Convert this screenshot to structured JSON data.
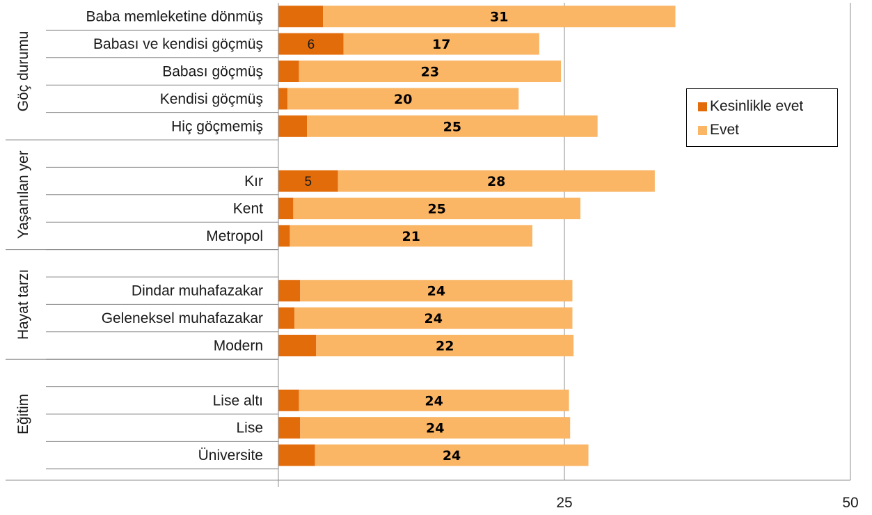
{
  "colors": {
    "kesinlikle": "#e36c0a",
    "evet": "#fab565",
    "axis": "#8c8c8c",
    "grid": "#8c8c8c"
  },
  "chart_data": {
    "type": "bar",
    "orientation": "horizontal",
    "stacked": true,
    "xlim": [
      0,
      50
    ],
    "x_ticks": [
      "25",
      "50"
    ],
    "grid": true,
    "legend_position": "right",
    "groups": [
      {
        "name": "Göç durumu",
        "categories": [
          "Baba memleketine dönmüş",
          "Babası ve kendisi göçmüş",
          "Babası göçmüş",
          "Kendisi göçmüş",
          "Hiç göçmemiş"
        ]
      },
      {
        "name": "Yaşanılan yer",
        "categories": [
          "",
          "Kır",
          "Kent",
          "Metropol"
        ]
      },
      {
        "name": "Hayat tarzı",
        "categories": [
          "",
          "Dindar muhafazakar",
          "Geleneksel muhafazakar",
          "Modern"
        ]
      },
      {
        "name": "Eğitim",
        "categories": [
          "",
          "Lise altı",
          "Lise",
          "Üniversite"
        ]
      }
    ],
    "categories": [
      "Baba memleketine dönmüş",
      "Babası ve kendisi göçmüş",
      "Babası göçmüş",
      "Kendisi göçmüş",
      "Hiç göçmemiş",
      "",
      "Kır",
      "Kent",
      "Metropol",
      "",
      "Dindar muhafazakar",
      "Geleneksel muhafazakar",
      "Modern",
      "",
      "Lise altı",
      "Lise",
      "Üniversite"
    ],
    "series": [
      {
        "name": "Kesinlikle evet",
        "values": [
          3.9,
          5.7,
          1.8,
          0.8,
          2.5,
          null,
          5.2,
          1.3,
          1.0,
          null,
          1.9,
          1.4,
          3.3,
          null,
          1.8,
          1.9,
          3.2
        ]
      },
      {
        "name": "Evet",
        "values": [
          30.8,
          17.1,
          22.9,
          20.2,
          25.4,
          null,
          27.7,
          25.1,
          21.2,
          null,
          23.8,
          24.3,
          22.5,
          null,
          23.6,
          23.6,
          23.9
        ]
      }
    ],
    "data_labels": {
      "Kesinlikle evet": [
        "",
        "6",
        "",
        "",
        "",
        "",
        "5",
        "",
        "",
        "",
        "",
        "",
        "",
        "",
        "",
        "",
        ""
      ],
      "Evet": [
        "31",
        "17",
        "23",
        "20",
        "25",
        "",
        "28",
        "25",
        "21",
        "",
        "24",
        "24",
        "22",
        "",
        "24",
        "24",
        "24"
      ]
    }
  }
}
